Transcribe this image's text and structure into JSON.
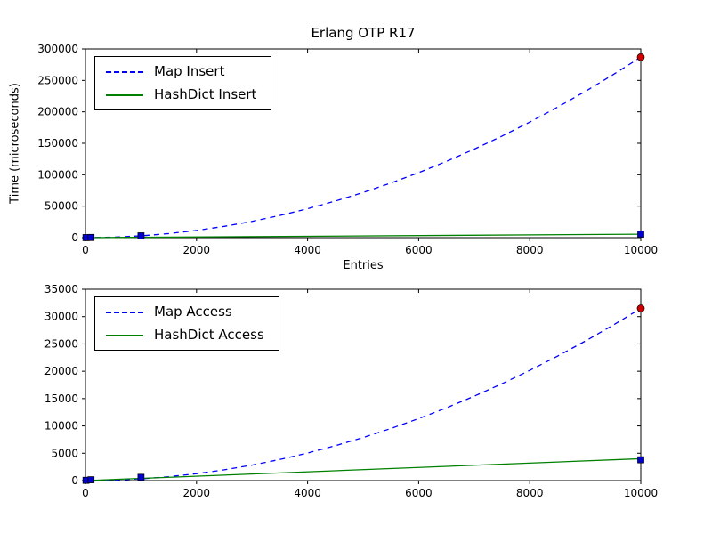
{
  "figure_background": "#ffffff",
  "chart_data": [
    {
      "type": "line",
      "title": "Erlang OTP R17",
      "xlabel": "Entries",
      "ylabel": "Time (microseconds)",
      "xlim": [
        0,
        10000
      ],
      "ylim": [
        0,
        300000
      ],
      "xticks": [
        0,
        2000,
        4000,
        6000,
        8000,
        10000
      ],
      "yticks": [
        0,
        50000,
        100000,
        150000,
        200000,
        250000,
        300000
      ],
      "grid": false,
      "legend_position": "upper-left",
      "legend": [
        {
          "label": "Map Insert",
          "color": "#0000ff",
          "dash": true
        },
        {
          "label": "HashDict Insert",
          "color": "#008000",
          "dash": false
        }
      ],
      "series": [
        {
          "name": "Map Insert",
          "color": "#0000ff",
          "dash": true,
          "x": [
            0,
            500,
            1000,
            1500,
            2000,
            2500,
            3000,
            3500,
            4000,
            4500,
            5000,
            5500,
            6000,
            6500,
            7000,
            7500,
            8000,
            8500,
            9000,
            9500,
            10000
          ],
          "y": [
            0,
            718,
            2870,
            6458,
            11480,
            17938,
            25830,
            35158,
            45920,
            58118,
            71750,
            86818,
            103320,
            121258,
            140630,
            161438,
            183680,
            207358,
            232470,
            259018,
            287000
          ]
        },
        {
          "name": "HashDict Insert",
          "color": "#008000",
          "dash": false,
          "x": [
            0,
            10000
          ],
          "y": [
            0,
            5500
          ]
        }
      ],
      "markers": [
        {
          "shape": "square",
          "color": "#0000cc",
          "points": [
            [
              10,
              100
            ],
            [
              100,
              300
            ],
            [
              1000,
              2900
            ],
            [
              10000,
              5500
            ]
          ]
        },
        {
          "shape": "circle",
          "color": "#cc0000",
          "points": [
            [
              10000,
              287000
            ]
          ]
        }
      ]
    },
    {
      "type": "line",
      "title": "",
      "xlabel": "",
      "ylabel": "",
      "xlim": [
        0,
        10000
      ],
      "ylim": [
        0,
        35000
      ],
      "xticks": [
        0,
        2000,
        4000,
        6000,
        8000,
        10000
      ],
      "yticks": [
        0,
        5000,
        10000,
        15000,
        20000,
        25000,
        30000,
        35000
      ],
      "grid": false,
      "legend_position": "upper-left",
      "legend": [
        {
          "label": "Map Access",
          "color": "#0000ff",
          "dash": true
        },
        {
          "label": "HashDict Access",
          "color": "#008000",
          "dash": false
        }
      ],
      "series": [
        {
          "name": "Map Access",
          "color": "#0000ff",
          "dash": true,
          "x": [
            0,
            500,
            1000,
            1500,
            2000,
            2500,
            3000,
            3500,
            4000,
            4500,
            5000,
            5500,
            6000,
            6500,
            7000,
            7500,
            8000,
            8500,
            9000,
            9500,
            10000
          ],
          "y": [
            0,
            79,
            315,
            709,
            1260,
            1969,
            2835,
            3859,
            5040,
            6379,
            7875,
            9529,
            11340,
            13309,
            15435,
            17719,
            20160,
            22759,
            25515,
            28429,
            31500
          ]
        },
        {
          "name": "HashDict Access",
          "color": "#008000",
          "dash": false,
          "x": [
            0,
            10000
          ],
          "y": [
            0,
            4000
          ]
        }
      ],
      "markers": [
        {
          "shape": "square",
          "color": "#0000cc",
          "points": [
            [
              10,
              50
            ],
            [
              100,
              150
            ],
            [
              1000,
              600
            ],
            [
              10000,
              3800
            ]
          ]
        },
        {
          "shape": "circle",
          "color": "#cc0000",
          "points": [
            [
              10000,
              31500
            ]
          ]
        }
      ]
    }
  ]
}
